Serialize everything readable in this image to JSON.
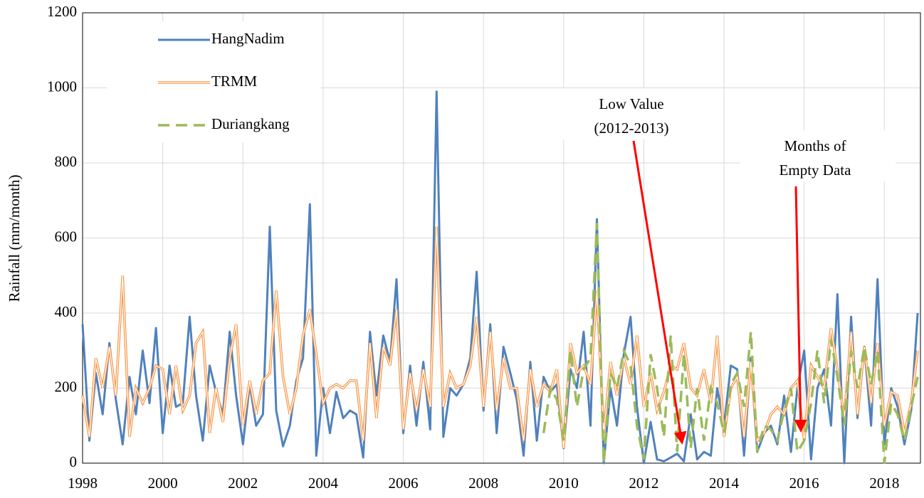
{
  "chart_data": {
    "type": "line",
    "y_label": "Rainfall (mm/month)",
    "x": [
      1998,
      1998.17,
      1998.33,
      1998.5,
      1998.67,
      1998.83,
      1999,
      1999.17,
      1999.33,
      1999.5,
      1999.67,
      1999.83,
      2000,
      2000.17,
      2000.33,
      2000.5,
      2000.67,
      2000.83,
      2001,
      2001.17,
      2001.33,
      2001.5,
      2001.67,
      2001.83,
      2002,
      2002.17,
      2002.33,
      2002.5,
      2002.67,
      2002.83,
      2003,
      2003.17,
      2003.33,
      2003.5,
      2003.67,
      2003.83,
      2004,
      2004.17,
      2004.33,
      2004.5,
      2004.67,
      2004.83,
      2005,
      2005.17,
      2005.33,
      2005.5,
      2005.67,
      2005.83,
      2006,
      2006.17,
      2006.33,
      2006.5,
      2006.67,
      2006.83,
      2007,
      2007.17,
      2007.33,
      2007.5,
      2007.67,
      2007.83,
      2008,
      2008.17,
      2008.33,
      2008.5,
      2008.67,
      2008.83,
      2009,
      2009.17,
      2009.33,
      2009.5,
      2009.67,
      2009.83,
      2010,
      2010.17,
      2010.33,
      2010.5,
      2010.67,
      2010.83,
      2011,
      2011.17,
      2011.33,
      2011.5,
      2011.67,
      2011.83,
      2012,
      2012.17,
      2012.33,
      2012.5,
      2012.67,
      2012.83,
      2013,
      2013.17,
      2013.33,
      2013.5,
      2013.67,
      2013.83,
      2014,
      2014.17,
      2014.33,
      2014.5,
      2014.67,
      2014.83,
      2015,
      2015.17,
      2015.33,
      2015.5,
      2015.67,
      2015.83,
      2016,
      2016.17,
      2016.33,
      2016.5,
      2016.67,
      2016.83,
      2017,
      2017.17,
      2017.33,
      2017.5,
      2017.67,
      2017.83,
      2018,
      2018.17,
      2018.33,
      2018.5,
      2018.67,
      2018.83
    ],
    "series": [
      {
        "name": "HangNadim",
        "color": "#4f81bd",
        "style": "solid",
        "values": [
          370,
          60,
          240,
          130,
          320,
          170,
          50,
          230,
          130,
          300,
          160,
          360,
          80,
          260,
          150,
          160,
          390,
          180,
          60,
          260,
          190,
          130,
          350,
          180,
          50,
          210,
          100,
          130,
          630,
          140,
          45,
          100,
          220,
          280,
          690,
          20,
          200,
          80,
          190,
          120,
          140,
          130,
          15,
          350,
          180,
          340,
          270,
          490,
          80,
          260,
          100,
          270,
          90,
          990,
          70,
          200,
          180,
          210,
          280,
          510,
          140,
          370,
          80,
          310,
          240,
          170,
          20,
          270,
          60,
          230,
          190,
          210,
          40,
          250,
          200,
          350,
          100,
          650,
          0,
          200,
          100,
          290,
          390,
          150,
          0,
          110,
          10,
          5,
          15,
          25,
          5,
          130,
          10,
          30,
          20,
          200,
          100,
          260,
          250,
          20,
          280,
          30,
          80,
          100,
          50,
          180,
          30,
          200,
          300,
          10,
          200,
          250,
          100,
          450,
          0,
          390,
          120,
          310,
          100,
          490,
          50,
          200,
          150,
          50,
          140,
          400
        ]
      },
      {
        "name": "TRMM",
        "color": "#f79646",
        "style": "double",
        "values": [
          180,
          70,
          280,
          200,
          310,
          180,
          500,
          70,
          200,
          160,
          200,
          260,
          250,
          130,
          260,
          140,
          180,
          320,
          350,
          80,
          200,
          110,
          280,
          370,
          100,
          220,
          130,
          220,
          240,
          460,
          230,
          130,
          200,
          340,
          410,
          290,
          160,
          200,
          210,
          200,
          220,
          220,
          60,
          320,
          120,
          310,
          260,
          410,
          90,
          240,
          140,
          250,
          150,
          630,
          150,
          240,
          200,
          210,
          260,
          390,
          150,
          350,
          140,
          280,
          200,
          200,
          60,
          250,
          150,
          210,
          190,
          250,
          40,
          320,
          240,
          260,
          210,
          460,
          80,
          270,
          180,
          280,
          210,
          340,
          150,
          240,
          140,
          190,
          260,
          250,
          320,
          200,
          180,
          250,
          160,
          340,
          70,
          200,
          230,
          70,
          270,
          60,
          80,
          130,
          150,
          130,
          200,
          220,
          60,
          260,
          230,
          200,
          360,
          250,
          120,
          350,
          130,
          310,
          160,
          320,
          100,
          190,
          180,
          80,
          160,
          300
        ]
      },
      {
        "name": "Duriangkang",
        "color": "#9bbb59",
        "style": "dashed",
        "values": [
          null,
          null,
          null,
          null,
          null,
          null,
          null,
          null,
          null,
          null,
          null,
          null,
          null,
          null,
          null,
          null,
          null,
          null,
          null,
          null,
          null,
          null,
          null,
          null,
          null,
          null,
          null,
          null,
          null,
          null,
          null,
          null,
          null,
          null,
          null,
          null,
          null,
          null,
          null,
          null,
          null,
          null,
          null,
          null,
          null,
          null,
          null,
          null,
          null,
          null,
          null,
          null,
          null,
          null,
          null,
          null,
          null,
          null,
          null,
          null,
          null,
          null,
          null,
          null,
          null,
          null,
          null,
          null,
          null,
          80,
          200,
          170,
          60,
          300,
          150,
          250,
          280,
          640,
          0,
          240,
          200,
          300,
          260,
          100,
          10,
          290,
          200,
          70,
          340,
          30,
          290,
          40,
          200,
          60,
          200,
          160,
          80,
          210,
          240,
          150,
          350,
          30,
          100,
          90,
          60,
          140,
          200,
          30,
          60,
          160,
          300,
          160,
          330,
          230,
          100,
          300,
          200,
          310,
          210,
          300,
          0,
          160,
          130,
          60,
          150,
          230
        ]
      }
    ],
    "xlim": [
      1998,
      2018.9
    ],
    "ylim": [
      0,
      1200
    ],
    "xticks": [
      1998,
      2000,
      2002,
      2004,
      2006,
      2008,
      2010,
      2012,
      2014,
      2016,
      2018
    ],
    "yticks": [
      0,
      200,
      400,
      600,
      800,
      1000,
      1200
    ],
    "grid": true,
    "legend": "upper left",
    "annotations": [
      [
        "Low Value",
        "(2012-2013)"
      ],
      [
        "Months of",
        "Empty Data"
      ]
    ],
    "annotation_color": "#ff0000"
  }
}
